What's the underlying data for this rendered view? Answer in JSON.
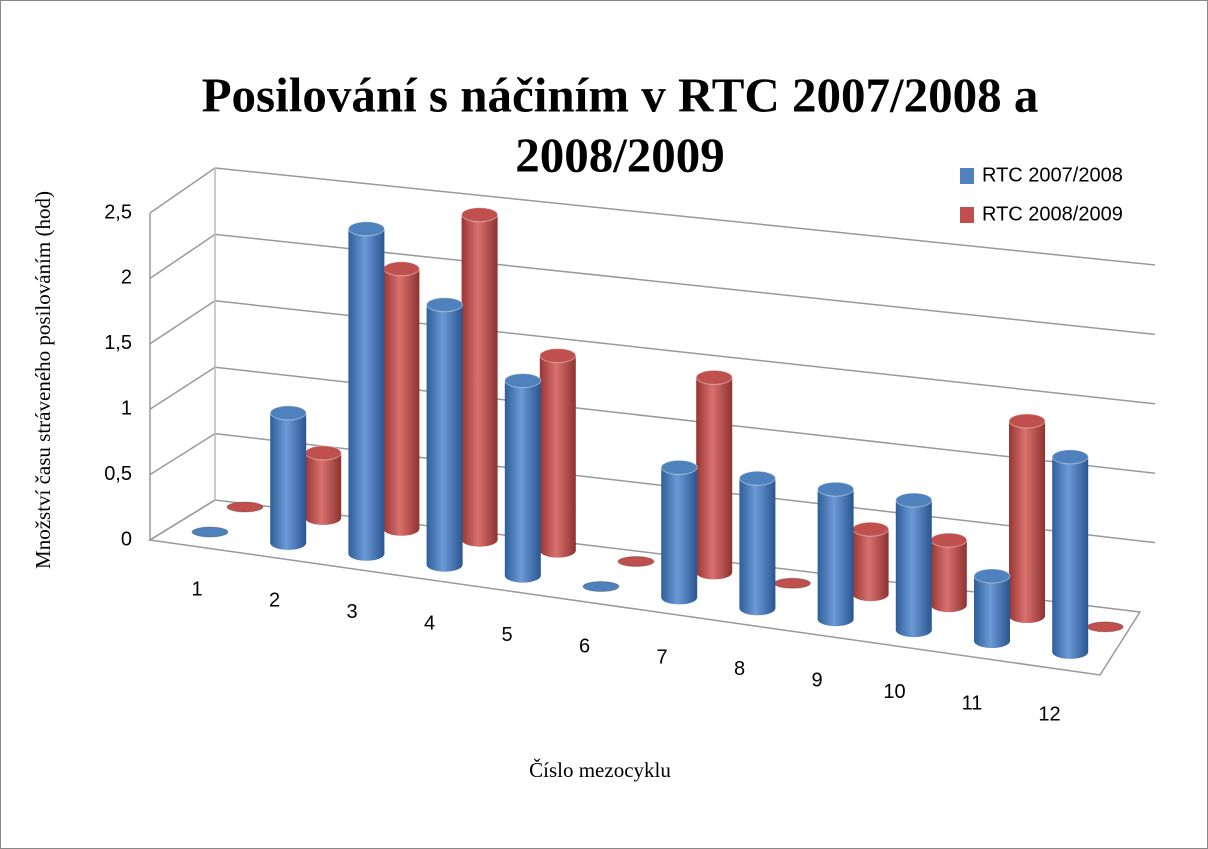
{
  "chart_data": {
    "type": "bar3d",
    "title": [
      "Posilování s náčiním v RTC 2007/2008 a",
      "2008/2009"
    ],
    "x_label": "Číslo mezocyklu",
    "y_label": "Množství času stráveného posilováním (hod)",
    "categories": [
      "1",
      "2",
      "3",
      "4",
      "5",
      "6",
      "7",
      "8",
      "9",
      "10",
      "11",
      "12"
    ],
    "series": [
      {
        "name": "RTC 2007/2008",
        "color": "#4f81bd",
        "values": [
          0,
          1,
          2.5,
          2,
          1.5,
          0,
          1,
          1,
          1,
          1,
          0.5,
          1.5
        ]
      },
      {
        "name": "RTC 2008/2009",
        "color": "#c0504d",
        "values": [
          0,
          0.5,
          2,
          2.5,
          1.5,
          0,
          1.5,
          0,
          0.5,
          0.5,
          1.5,
          0
        ]
      }
    ],
    "ylim": [
      0,
      2.5
    ],
    "yticks": [
      0,
      {
        "value": 0.5,
        "label": "0,5"
      },
      1,
      {
        "value": 1.5,
        "label": "1,5"
      },
      2,
      {
        "value": 2.5,
        "label": "2,5"
      }
    ],
    "grid": true,
    "legend": "top-right"
  }
}
